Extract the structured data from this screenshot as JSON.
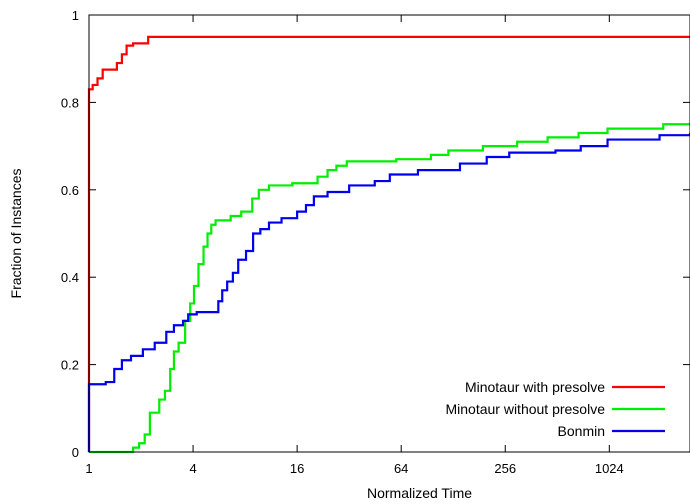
{
  "chart_data": {
    "type": "line",
    "title": "",
    "xlabel": "Normalized Time",
    "ylabel": "Fraction of Instances",
    "x_scale": "log2",
    "xlim": [
      1,
      3000
    ],
    "ylim": [
      0,
      1
    ],
    "x_ticks": [
      1,
      4,
      16,
      64,
      256,
      1024
    ],
    "x_tick_labels": [
      "1",
      "4",
      "16",
      "64",
      "256",
      "1024"
    ],
    "y_ticks": [
      0,
      0.2,
      0.4,
      0.6,
      0.8,
      1
    ],
    "y_tick_labels": [
      "0",
      "0.2",
      "0.4",
      "0.6",
      "0.8",
      "1"
    ],
    "grid": false,
    "legend_position": "bottom-right",
    "series": [
      {
        "name": "Minotaur with presolve",
        "color": "#ff0000",
        "step": true,
        "points": [
          [
            1,
            0
          ],
          [
            1.0,
            0.83
          ],
          [
            1.05,
            0.84
          ],
          [
            1.12,
            0.855
          ],
          [
            1.2,
            0.875
          ],
          [
            1.35,
            0.875
          ],
          [
            1.45,
            0.89
          ],
          [
            1.55,
            0.91
          ],
          [
            1.65,
            0.93
          ],
          [
            1.8,
            0.935
          ],
          [
            2.2,
            0.95
          ],
          [
            3000,
            0.95
          ]
        ]
      },
      {
        "name": "Minotaur without presolve",
        "color": "#00ee00",
        "step": true,
        "points": [
          [
            1,
            0
          ],
          [
            1.75,
            0
          ],
          [
            1.8,
            0.01
          ],
          [
            1.95,
            0.02
          ],
          [
            2.1,
            0.04
          ],
          [
            2.25,
            0.09
          ],
          [
            2.55,
            0.12
          ],
          [
            2.75,
            0.14
          ],
          [
            2.95,
            0.19
          ],
          [
            3.1,
            0.23
          ],
          [
            3.3,
            0.25
          ],
          [
            3.6,
            0.3
          ],
          [
            3.85,
            0.34
          ],
          [
            4.05,
            0.38
          ],
          [
            4.3,
            0.43
          ],
          [
            4.6,
            0.47
          ],
          [
            4.85,
            0.5
          ],
          [
            5.1,
            0.52
          ],
          [
            5.4,
            0.53
          ],
          [
            6.6,
            0.54
          ],
          [
            7.6,
            0.55
          ],
          [
            8.8,
            0.58
          ],
          [
            9.6,
            0.6
          ],
          [
            11,
            0.61
          ],
          [
            15,
            0.615
          ],
          [
            21,
            0.63
          ],
          [
            24,
            0.645
          ],
          [
            27,
            0.655
          ],
          [
            31,
            0.665
          ],
          [
            60,
            0.67
          ],
          [
            95,
            0.68
          ],
          [
            120,
            0.69
          ],
          [
            190,
            0.7
          ],
          [
            300,
            0.71
          ],
          [
            450,
            0.72
          ],
          [
            680,
            0.73
          ],
          [
            1000,
            0.74
          ],
          [
            2100,
            0.75
          ],
          [
            3000,
            0.75
          ]
        ]
      },
      {
        "name": "Bonmin",
        "color": "#0000ee",
        "step": true,
        "points": [
          [
            1,
            0
          ],
          [
            1.0,
            0.155
          ],
          [
            1.25,
            0.16
          ],
          [
            1.4,
            0.19
          ],
          [
            1.55,
            0.21
          ],
          [
            1.75,
            0.22
          ],
          [
            2.05,
            0.235
          ],
          [
            2.4,
            0.25
          ],
          [
            2.8,
            0.275
          ],
          [
            3.1,
            0.29
          ],
          [
            3.5,
            0.3
          ],
          [
            3.75,
            0.315
          ],
          [
            4.2,
            0.32
          ],
          [
            5.0,
            0.32
          ],
          [
            5.6,
            0.345
          ],
          [
            5.9,
            0.37
          ],
          [
            6.3,
            0.39
          ],
          [
            6.8,
            0.41
          ],
          [
            7.3,
            0.44
          ],
          [
            8.1,
            0.46
          ],
          [
            8.9,
            0.5
          ],
          [
            9.8,
            0.51
          ],
          [
            11,
            0.525
          ],
          [
            13,
            0.535
          ],
          [
            16,
            0.55
          ],
          [
            18,
            0.565
          ],
          [
            20,
            0.585
          ],
          [
            24,
            0.595
          ],
          [
            32,
            0.61
          ],
          [
            45,
            0.62
          ],
          [
            55,
            0.635
          ],
          [
            80,
            0.645
          ],
          [
            140,
            0.66
          ],
          [
            200,
            0.675
          ],
          [
            270,
            0.685
          ],
          [
            500,
            0.69
          ],
          [
            700,
            0.7
          ],
          [
            1000,
            0.715
          ],
          [
            2000,
            0.725
          ],
          [
            3000,
            0.73
          ]
        ]
      }
    ]
  }
}
